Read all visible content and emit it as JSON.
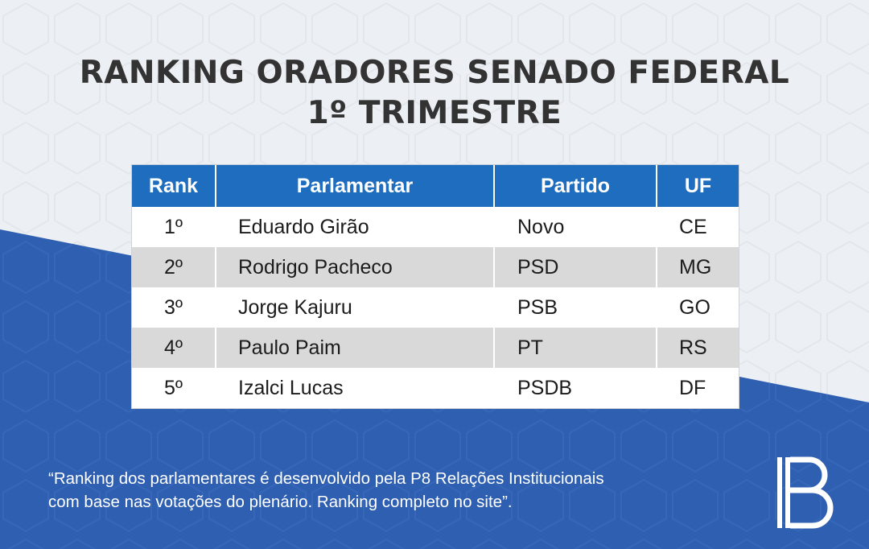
{
  "title": {
    "line1": "RANKING ORADORES SENADO FEDERAL",
    "line2": "1º TRIMESTRE"
  },
  "table": {
    "headers": [
      "Rank",
      "Parlamentar",
      "Partido",
      "UF"
    ],
    "rows": [
      {
        "rank": "1º",
        "name": "Eduardo Girão",
        "party": "Novo",
        "uf": "CE"
      },
      {
        "rank": "2º",
        "name": "Rodrigo Pacheco",
        "party": "PSD",
        "uf": "MG"
      },
      {
        "rank": "3º",
        "name": "Jorge Kajuru",
        "party": "PSB",
        "uf": "GO"
      },
      {
        "rank": "4º",
        "name": "Paulo Paim",
        "party": "PT",
        "uf": "RS"
      },
      {
        "rank": "5º",
        "name": "Izalci Lucas",
        "party": "PSDB",
        "uf": "DF"
      }
    ]
  },
  "caption": {
    "line1": "“Ranking dos parlamentares é desenvolvido pela P8 Relações Institucionais",
    "line2": "com base nas votações do plenário. Ranking completo no site”."
  },
  "colors": {
    "header_blue": "#1f6dbf",
    "band_blue": "#2f5fb0",
    "title_text": "#333333",
    "row_alt": "#d9d9d9"
  },
  "icons": {
    "logo": "p8-logo-icon",
    "pattern": "hexagon-pattern"
  }
}
